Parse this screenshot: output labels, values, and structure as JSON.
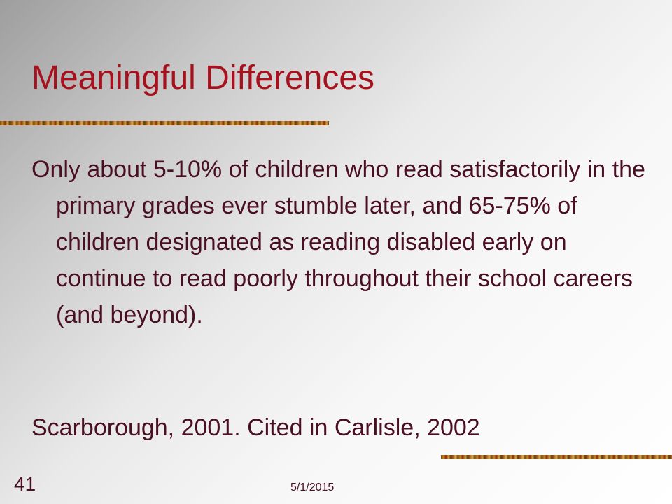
{
  "slide": {
    "title": "Meaningful Differences",
    "body": "Only about 5-10% of children who read satisfactorily in the primary grades ever stumble later, and 65-75% of children designated as reading disabled early on continue to read poorly throughout their school careers (and beyond).",
    "citation": "Scarborough, 2001. Cited in Carlisle, 2002"
  },
  "footer": {
    "slide_number": "41",
    "date": "5/1/2015"
  },
  "colors": {
    "title": "#a6111d",
    "text": "#4a0f22"
  }
}
